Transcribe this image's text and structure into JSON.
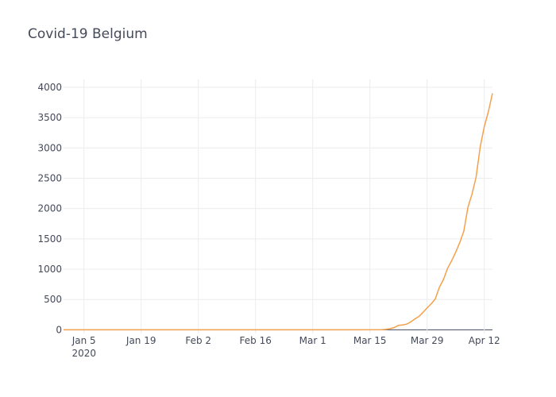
{
  "chart_data": {
    "type": "line",
    "title": "Covid-19 Belgium",
    "xlabel": "",
    "ylabel": "",
    "x_start": "2019-12-31",
    "x_end": "2020-04-14",
    "ylim": [
      -60,
      4130
    ],
    "y_ticks": [
      0,
      500,
      1000,
      1500,
      2000,
      2500,
      3000,
      3500,
      4000
    ],
    "x_ticks": [
      {
        "date": "2020-01-05",
        "label": "Jan 5",
        "sublabel": "2020"
      },
      {
        "date": "2020-01-19",
        "label": "Jan 19",
        "sublabel": ""
      },
      {
        "date": "2020-02-02",
        "label": "Feb 2",
        "sublabel": ""
      },
      {
        "date": "2020-02-16",
        "label": "Feb 16",
        "sublabel": ""
      },
      {
        "date": "2020-03-01",
        "label": "Mar 1",
        "sublabel": ""
      },
      {
        "date": "2020-03-15",
        "label": "Mar 15",
        "sublabel": ""
      },
      {
        "date": "2020-03-29",
        "label": "Mar 29",
        "sublabel": ""
      },
      {
        "date": "2020-04-12",
        "label": "Apr 12",
        "sublabel": ""
      }
    ],
    "grid": true,
    "series": [
      {
        "color": "#f5a04a",
        "points": [
          {
            "x": "2019-12-31",
            "y": 0
          },
          {
            "x": "2020-03-10",
            "y": 0
          },
          {
            "x": "2020-03-18",
            "y": 3
          },
          {
            "x": "2020-03-19",
            "y": 10
          },
          {
            "x": "2020-03-20",
            "y": 20
          },
          {
            "x": "2020-03-21",
            "y": 40
          },
          {
            "x": "2020-03-22",
            "y": 75
          },
          {
            "x": "2020-03-23",
            "y": 80
          },
          {
            "x": "2020-03-24",
            "y": 95
          },
          {
            "x": "2020-03-25",
            "y": 130
          },
          {
            "x": "2020-03-26",
            "y": 180
          },
          {
            "x": "2020-03-27",
            "y": 220
          },
          {
            "x": "2020-03-28",
            "y": 290
          },
          {
            "x": "2020-03-29",
            "y": 360
          },
          {
            "x": "2020-03-30",
            "y": 430
          },
          {
            "x": "2020-03-31",
            "y": 510
          },
          {
            "x": "2020-04-01",
            "y": 700
          },
          {
            "x": "2020-04-02",
            "y": 830
          },
          {
            "x": "2020-04-03",
            "y": 1010
          },
          {
            "x": "2020-04-04",
            "y": 1140
          },
          {
            "x": "2020-04-05",
            "y": 1280
          },
          {
            "x": "2020-04-06",
            "y": 1440
          },
          {
            "x": "2020-04-07",
            "y": 1630
          },
          {
            "x": "2020-04-08",
            "y": 2020
          },
          {
            "x": "2020-04-09",
            "y": 2240
          },
          {
            "x": "2020-04-10",
            "y": 2520
          },
          {
            "x": "2020-04-11",
            "y": 3020
          },
          {
            "x": "2020-04-12",
            "y": 3350
          },
          {
            "x": "2020-04-13",
            "y": 3600
          },
          {
            "x": "2020-04-14",
            "y": 3900
          }
        ]
      }
    ]
  }
}
